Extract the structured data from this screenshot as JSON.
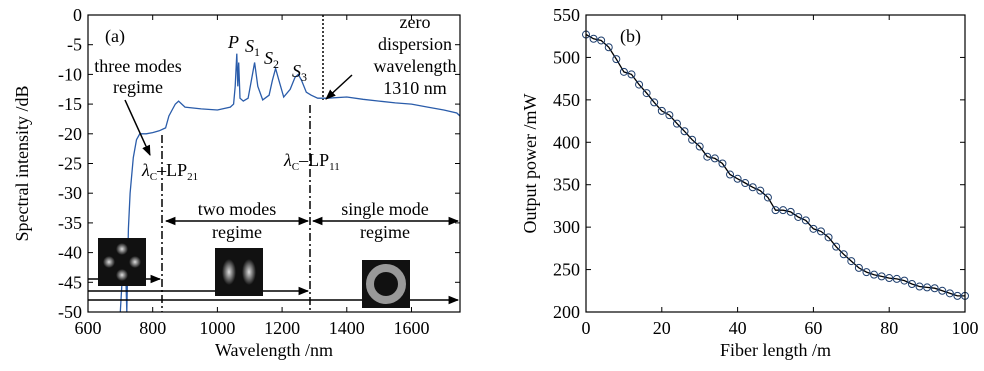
{
  "chart_data": [
    {
      "type": "line",
      "color": "#2a5caa",
      "xlabel": "Wavelength /nm",
      "ylabel": "Spectral intensity /dB",
      "xlim": [
        600,
        1750
      ],
      "xticks": [
        600,
        800,
        1000,
        1200,
        1400,
        1600
      ],
      "ylim": [
        -50,
        0
      ],
      "yticks": [
        0,
        -5,
        -10,
        -15,
        -20,
        -25,
        -30,
        -35,
        -40,
        -45,
        -50
      ],
      "x": [
        700,
        705,
        710,
        715,
        720,
        725,
        730,
        740,
        750,
        760,
        780,
        800,
        820,
        840,
        850,
        860,
        870,
        880,
        900,
        950,
        1000,
        1040,
        1050,
        1055,
        1060,
        1063,
        1066,
        1070,
        1080,
        1095,
        1105,
        1115,
        1125,
        1140,
        1160,
        1170,
        1180,
        1190,
        1205,
        1225,
        1240,
        1250,
        1260,
        1275,
        1290,
        1310,
        1340,
        1400,
        1450,
        1500,
        1550,
        1600,
        1650,
        1700,
        1740,
        1750
      ],
      "values": [
        -50,
        -45,
        -42,
        -40,
        -50,
        -36,
        -30,
        -24,
        -21,
        -20,
        -20,
        -19.8,
        -19.5,
        -19,
        -17,
        -16,
        -15,
        -14.5,
        -15.5,
        -15.8,
        -16,
        -15.5,
        -15,
        -12,
        -6.5,
        -12,
        -8,
        -14,
        -14.5,
        -14,
        -11,
        -8,
        -12,
        -14.3,
        -13.5,
        -11,
        -9,
        -11,
        -13.8,
        -12.5,
        -10.5,
        -10,
        -11,
        -13,
        -13.5,
        -14,
        -14,
        -13.8,
        -14.2,
        -14.5,
        -14.8,
        -15,
        -15.5,
        -16,
        -16.5,
        -17
      ],
      "annotations": {
        "panel": "(a)",
        "peaks": [
          {
            "text": "P",
            "sub": ""
          },
          {
            "text": "S",
            "sub": "1"
          },
          {
            "text": "S",
            "sub": "2"
          },
          {
            "text": "S",
            "sub": "3"
          }
        ],
        "three_modes": [
          "three modes",
          "regime"
        ],
        "zero_dispersion": [
          "zero",
          "dispersion",
          "wavelength",
          "1310 nm"
        ],
        "cutoff_21": {
          "text": "λ",
          "sub": "C",
          "text2": "–LP",
          "sub2": "21"
        },
        "cutoff_11": {
          "text": "λ",
          "sub": "C",
          "text2": "–LP",
          "sub2": "11"
        },
        "two_modes": [
          "two modes",
          "regime"
        ],
        "single_mode": [
          "single mode",
          "regime"
        ]
      }
    },
    {
      "type": "line",
      "marker": "circle",
      "color": "#000000",
      "marker_color": "#1f3f6e",
      "xlabel": "Fiber length /m",
      "ylabel": "Output power /mW",
      "xlim": [
        0,
        100
      ],
      "xticks": [
        0,
        20,
        40,
        60,
        80,
        100
      ],
      "ylim": [
        200,
        550
      ],
      "yticks": [
        200,
        250,
        300,
        350,
        400,
        450,
        500,
        550
      ],
      "x": [
        0,
        2,
        4,
        6,
        8,
        10,
        12,
        14,
        16,
        18,
        20,
        22,
        24,
        26,
        28,
        30,
        32,
        34,
        36,
        38,
        40,
        42,
        44,
        46,
        48,
        50,
        52,
        54,
        56,
        58,
        60,
        62,
        64,
        66,
        68,
        70,
        72,
        74,
        76,
        78,
        80,
        82,
        84,
        86,
        88,
        90,
        92,
        94,
        96,
        98,
        100
      ],
      "values": [
        527,
        522,
        520,
        512,
        498,
        483,
        480,
        468,
        458,
        447,
        437,
        432,
        422,
        413,
        403,
        395,
        383,
        381,
        375,
        362,
        357,
        352,
        347,
        343,
        335,
        320,
        320,
        318,
        312,
        308,
        298,
        295,
        288,
        277,
        268,
        260,
        252,
        247,
        244,
        242,
        240,
        239,
        237,
        233,
        230,
        229,
        228,
        225,
        222,
        219,
        219
      ],
      "annotations": {
        "panel": "(b)"
      }
    }
  ]
}
